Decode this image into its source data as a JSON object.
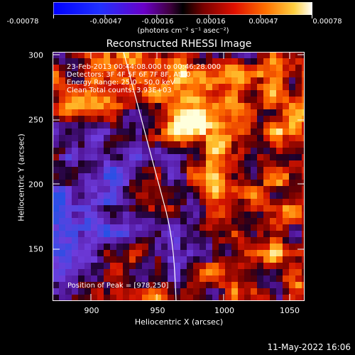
{
  "colorbar": {
    "tick_labels": [
      "-0.00078",
      "-0.00047",
      "-0.00016",
      "0.00016",
      "0.00047",
      "0.00078"
    ],
    "units": "(photons cm⁻² s⁻¹ asec⁻²)"
  },
  "image": {
    "title": "Reconstructed RHESSI Image",
    "info_lines": [
      "23-Feb-2013 00:44:08.000 to 00:46:28.000",
      "Detectors: 3F 4F 5F 6F 7F 8F, Att 0",
      "Energy Range: 25.0 - 50.0 keV",
      "Clean     Total counts: 3.93E+03"
    ],
    "peak_text": "Position of Peak = [978,250]",
    "colormap": "red-temperature"
  },
  "axes": {
    "x_label": "Heliocentric X (arcsec)",
    "y_label": "Heliocentric Y (arcsec)",
    "x_ticks": [
      "900",
      "950",
      "1000",
      "1050"
    ],
    "y_ticks": [
      "300",
      "250",
      "200",
      "150"
    ]
  },
  "footer": {
    "timestamp": "11-May-2022 16:06"
  },
  "colors": {
    "background": "#000000",
    "axis": "#ffffff"
  }
}
